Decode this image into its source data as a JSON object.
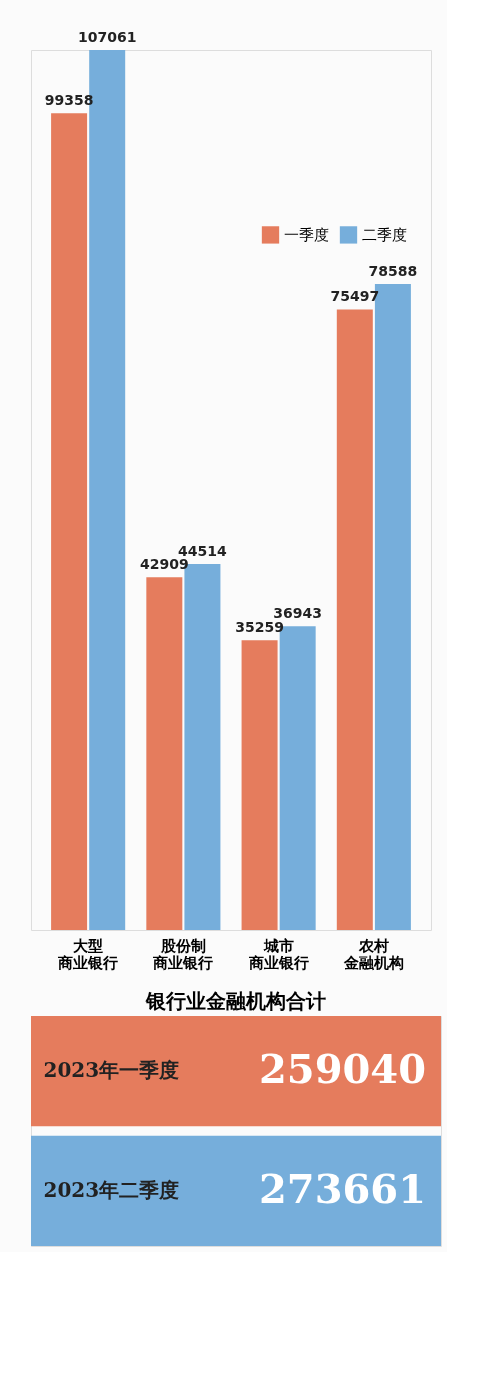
{
  "chart_data": [
    {
      "type": "bar",
      "categories": [
        "大型商业银行",
        "股份制商业银行",
        "城市商业银行",
        "农村金融机构"
      ],
      "series": [
        {
          "name": "一季度",
          "color": "#e57c5d",
          "values": [
            99358,
            42909,
            35259,
            75497
          ]
        },
        {
          "name": "二季度",
          "color": "#76aedb",
          "values": [
            107061,
            44514,
            36943,
            78588
          ]
        }
      ],
      "data_labels": true,
      "legend": "top right",
      "grid": false
    },
    {
      "type": "other",
      "title": "银行业金融机构合计",
      "categories": [
        "2023年一季度",
        "2023年二季度"
      ],
      "values": [
        259040,
        273661
      ],
      "colors": [
        "#e57c5d",
        "#76aedb"
      ],
      "data_labels": true
    }
  ]
}
